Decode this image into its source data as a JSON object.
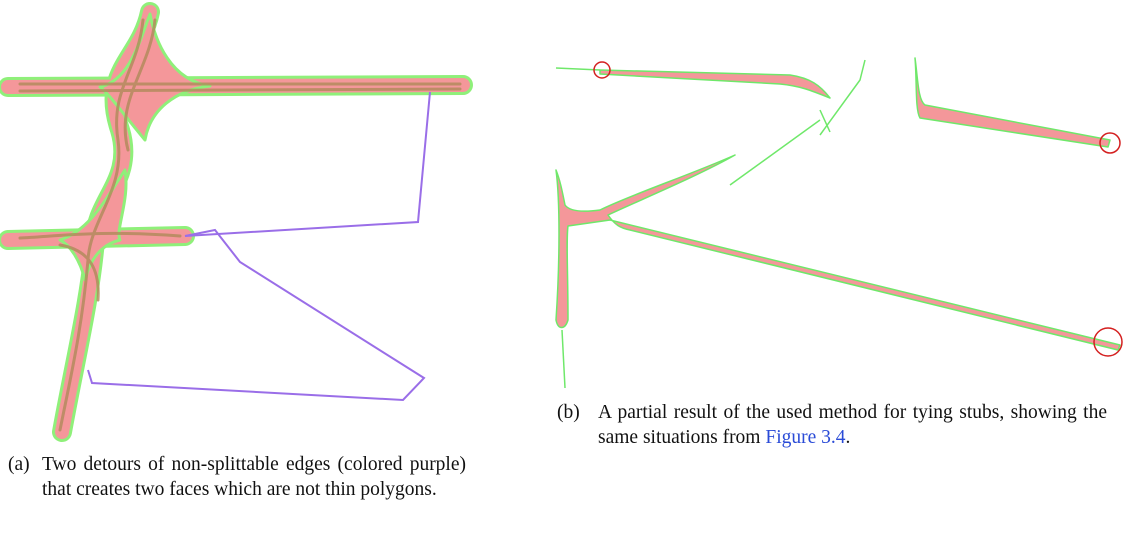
{
  "figures": [
    {
      "label": "(a)",
      "caption": "Two detours of non-splittable edges (colored purple) that creates two faces which are not thin polygons."
    },
    {
      "label": "(b)",
      "caption": "A partial result of the used method for tying stubs, showing the same situations from",
      "link": "Figure 3.4",
      "caption_end": "."
    }
  ]
}
